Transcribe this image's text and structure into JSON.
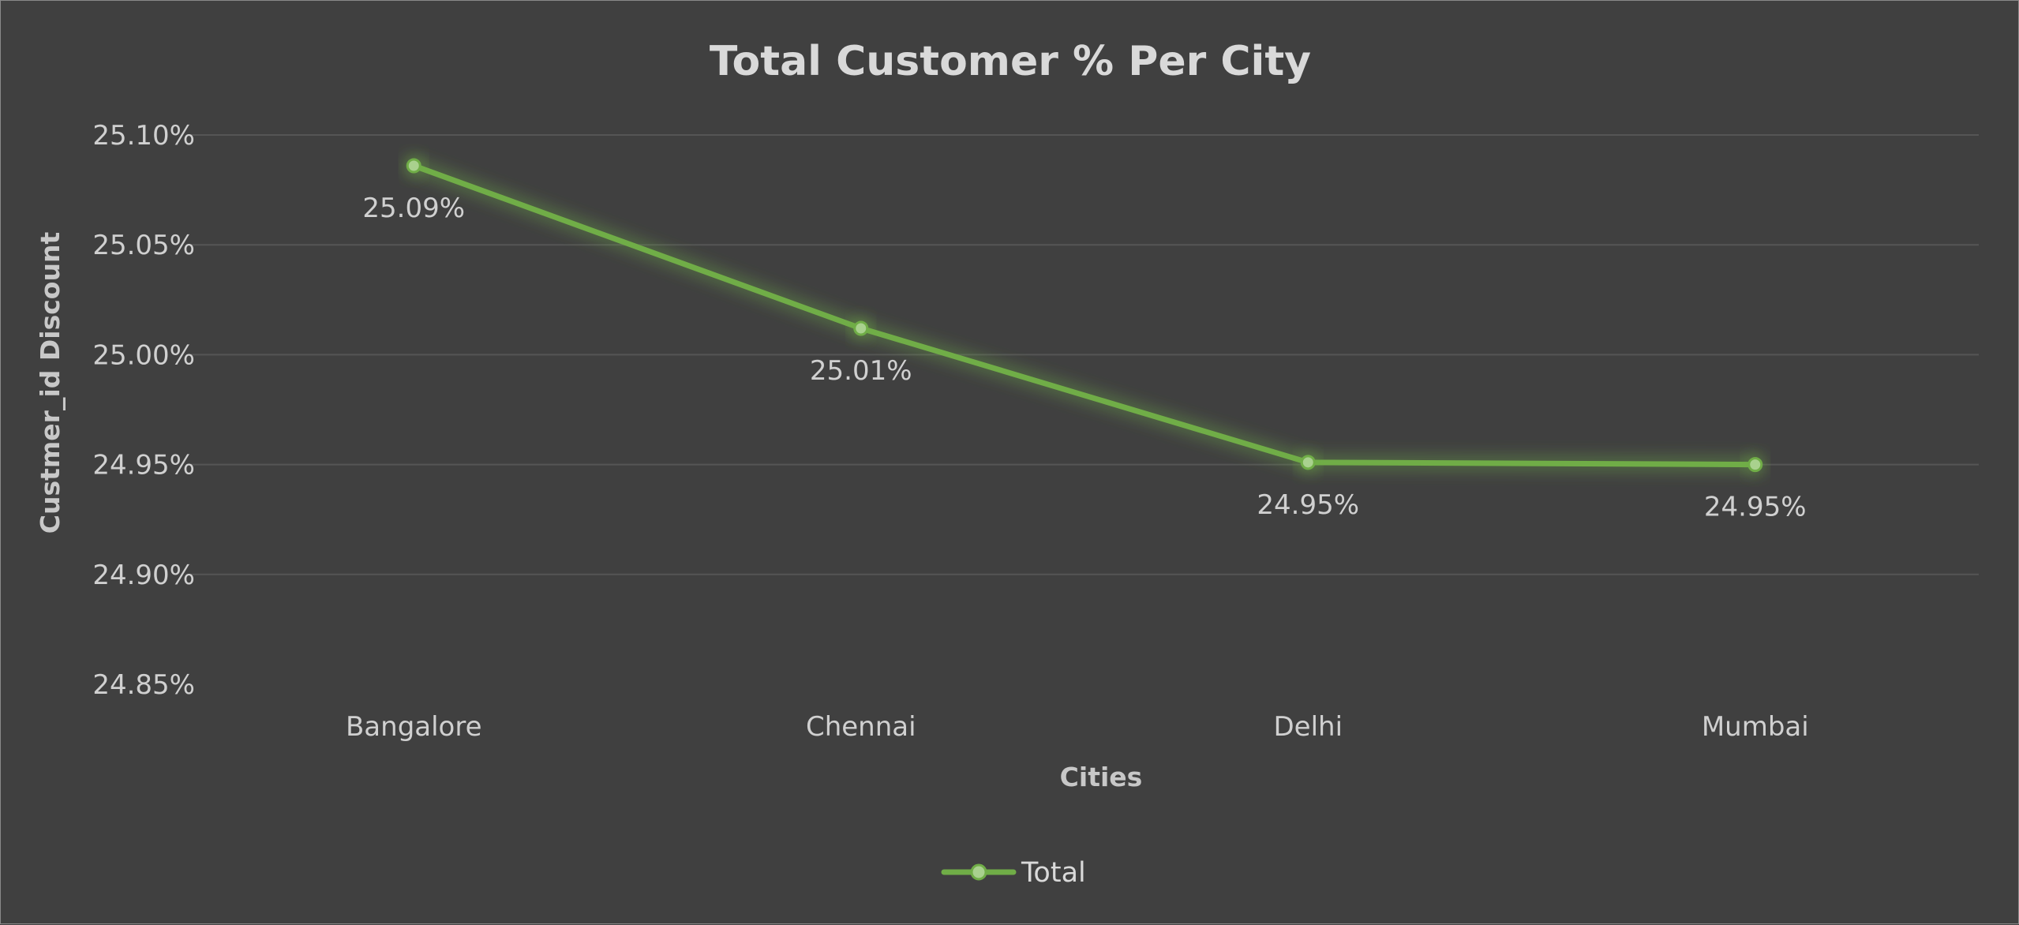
{
  "chart_data": {
    "type": "line",
    "title": "Total Customer % Per City",
    "xlabel": "Cities",
    "ylabel": "Custmer_id Discount",
    "categories": [
      "Bangalore",
      "Chennai",
      "Delhi",
      "Mumbai"
    ],
    "series": [
      {
        "name": "Total",
        "values": [
          25.086,
          25.012,
          24.951,
          24.95
        ],
        "data_labels": [
          "25.09%",
          "25.01%",
          "24.95%",
          "24.95%"
        ],
        "color": "#70ad47"
      }
    ],
    "ylim": [
      24.85,
      25.1
    ],
    "yticks": [
      25.1,
      25.05,
      25.0,
      24.95,
      24.9,
      24.85
    ],
    "ytick_labels": [
      "25.10%",
      "25.05%",
      "25.00%",
      "24.95%",
      "24.90%",
      "24.85%"
    ],
    "grid": true,
    "legend_position": "bottom",
    "background_color": "#404040",
    "marker_color": "#a9d18e"
  }
}
